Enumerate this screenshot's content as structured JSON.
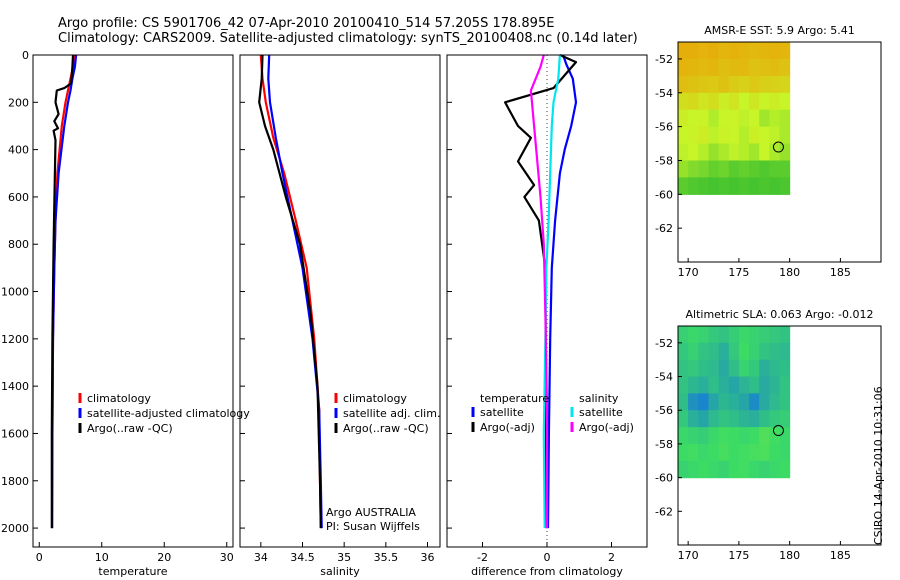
{
  "header": {
    "line1": "Argo profile: CS 5901706_42 07-Apr-2010 20100410_514 57.205S 178.895E",
    "line2": "Climatology: CARS2009. Satellite-adjusted climatology: synTS_20100408.nc (0.14d later)"
  },
  "stamp": "CSIRO 14-Apr-2010 10:31:06",
  "colors": {
    "climatology": "#ff0000",
    "satellite": "#0000ff",
    "argo": "#000000",
    "satellite_diff": "#00e5ee",
    "argo_diff": "#ff00ff"
  },
  "chart_data": [
    {
      "type": "line",
      "xlabel": "temperature",
      "ylabel": "",
      "xlim": [
        -1,
        31
      ],
      "ylim": [
        2080,
        0
      ],
      "xticks": [
        0,
        10,
        20,
        30
      ],
      "yticks": [
        0,
        200,
        400,
        600,
        800,
        1000,
        1200,
        1400,
        1600,
        1800,
        2000
      ],
      "legend": [
        "climatology",
        "satellite-adjusted climatology",
        "Argo(..raw -QC)"
      ],
      "legend_placement": "lower-center",
      "series": [
        {
          "name": "climatology",
          "color": "#ff0000",
          "x": [
            5.6,
            5.4,
            5.0,
            4.6,
            4.2,
            3.6,
            2.9,
            2.6,
            2.4,
            2.2,
            2.1,
            2.05
          ],
          "y": [
            0,
            50,
            100,
            150,
            200,
            300,
            500,
            700,
            900,
            1200,
            1600,
            2000
          ]
        },
        {
          "name": "satellite-adjusted climatology",
          "color": "#0000ff",
          "x": [
            5.9,
            5.7,
            5.3,
            5.0,
            4.6,
            4.0,
            3.1,
            2.6,
            2.4,
            2.2,
            2.1,
            2.05
          ],
          "y": [
            0,
            50,
            100,
            150,
            200,
            300,
            500,
            700,
            900,
            1200,
            1600,
            2000
          ]
        },
        {
          "name": "Argo(..raw -QC)",
          "color": "#000000",
          "x": [
            5.4,
            5.3,
            5.1,
            4.0,
            2.8,
            2.6,
            3.1,
            2.4,
            3.0,
            2.3,
            2.6,
            2.5,
            2.3,
            2.1,
            2.0,
            2.0
          ],
          "y": [
            0,
            50,
            120,
            140,
            150,
            200,
            250,
            280,
            310,
            320,
            360,
            500,
            800,
            1200,
            1600,
            2000
          ]
        }
      ]
    },
    {
      "type": "line",
      "xlabel": "salinity",
      "xlim": [
        33.75,
        36.15
      ],
      "ylim": [
        2080,
        0
      ],
      "xticks": [
        34,
        34.5,
        35,
        35.5,
        36
      ],
      "legend": [
        "climatology",
        "satellite adj. clim.",
        "Argo(..raw -QC)"
      ],
      "legend_placement": "lower-center",
      "annotation": [
        "Argo AUSTRALIA",
        "PI: Susan Wijffels"
      ],
      "series": [
        {
          "name": "climatology",
          "color": "#ff0000",
          "x": [
            34.0,
            34.02,
            34.06,
            34.15,
            34.28,
            34.42,
            34.55,
            34.64,
            34.7,
            34.71,
            34.72
          ],
          "y": [
            0,
            100,
            200,
            350,
            500,
            700,
            900,
            1200,
            1500,
            1800,
            2000
          ]
        },
        {
          "name": "satellite adj. clim.",
          "color": "#0000ff",
          "x": [
            34.1,
            34.09,
            34.11,
            34.18,
            34.26,
            34.38,
            34.5,
            34.62,
            34.7,
            34.72,
            34.73
          ],
          "y": [
            0,
            100,
            200,
            350,
            500,
            700,
            900,
            1200,
            1500,
            1800,
            2000
          ]
        },
        {
          "name": "Argo(..raw -QC)",
          "color": "#000000",
          "x": [
            34.02,
            34.01,
            33.98,
            34.05,
            34.15,
            34.3,
            34.47,
            34.6,
            34.68,
            34.71,
            34.72
          ],
          "y": [
            0,
            100,
            200,
            300,
            400,
            600,
            800,
            1100,
            1400,
            1800,
            2000
          ]
        }
      ]
    },
    {
      "type": "line",
      "xlabel": "difference from climatology",
      "xlim": [
        -3.1,
        3.1
      ],
      "ylim": [
        2080,
        0
      ],
      "xticks": [
        -2,
        0,
        2
      ],
      "legend_groups": [
        {
          "title": "temperature",
          "items": [
            "satellite",
            "Argo(-adj)"
          ]
        },
        {
          "title": "salinity",
          "items": [
            "satellite",
            "Argo(-adj)"
          ]
        }
      ],
      "legend_placement": "lower-center",
      "series": [
        {
          "name": "temperature satellite",
          "color": "#0000ff",
          "x": [
            0.5,
            0.6,
            0.8,
            0.9,
            0.75,
            0.55,
            0.4,
            0.25,
            0.15,
            0.1,
            0.06,
            0.03
          ],
          "y": [
            0,
            40,
            100,
            200,
            300,
            400,
            500,
            700,
            900,
            1200,
            1600,
            2000
          ]
        },
        {
          "name": "temperature Argo(-adj)",
          "color": "#000000",
          "x": [
            0.4,
            0.9,
            0.2,
            -1.3,
            -1.1,
            -0.9,
            -0.5,
            -0.9,
            -0.4,
            -0.7,
            -0.25,
            -0.05,
            -0.02
          ],
          "y": [
            0,
            30,
            140,
            200,
            250,
            300,
            350,
            450,
            550,
            600,
            700,
            900,
            2000
          ]
        },
        {
          "name": "salinity satellite",
          "color": "#00e5ee",
          "x": [
            0.4,
            0.35,
            0.2,
            0.15,
            0.1,
            0.05,
            -0.02,
            -0.05,
            -0.1,
            -0.07
          ],
          "y": [
            0,
            100,
            200,
            300,
            500,
            700,
            900,
            1200,
            1600,
            2000
          ]
        },
        {
          "name": "salinity Argo(-adj)",
          "color": "#ff00ff",
          "x": [
            -0.1,
            -0.2,
            -0.5,
            -0.4,
            -0.3,
            -0.2,
            -0.1,
            -0.05,
            0.0,
            0.0
          ],
          "y": [
            0,
            50,
            150,
            300,
            450,
            600,
            800,
            1100,
            1500,
            2000
          ]
        }
      ]
    },
    {
      "type": "heatmap",
      "title": "AMSR-E SST: 5.9 Argo: 5.41",
      "xlim": [
        169,
        189
      ],
      "ylim": [
        -64,
        -51
      ],
      "xticks": [
        170,
        175,
        180,
        185
      ],
      "yticks": [
        -52,
        -54,
        -56,
        -58,
        -60,
        -62
      ],
      "data_extent": {
        "lon": [
          169,
          180
        ],
        "lat": [
          -60,
          -51
        ]
      },
      "marker": {
        "lon": 178.895,
        "lat": -57.205
      },
      "values": [
        [
          0.85,
          0.85,
          0.82,
          0.84,
          0.8,
          0.83,
          0.8,
          0.78,
          0.8,
          0.82,
          0.8
        ],
        [
          0.82,
          0.8,
          0.78,
          0.8,
          0.75,
          0.77,
          0.78,
          0.72,
          0.74,
          0.76,
          0.72
        ],
        [
          0.75,
          0.72,
          0.7,
          0.68,
          0.72,
          0.66,
          0.62,
          0.68,
          0.64,
          0.62,
          0.6
        ],
        [
          0.55,
          0.58,
          0.5,
          0.55,
          0.45,
          0.5,
          0.4,
          0.48,
          0.42,
          0.45,
          0.4
        ],
        [
          0.45,
          0.4,
          0.42,
          0.35,
          0.4,
          0.42,
          0.38,
          0.4,
          0.32,
          0.36,
          0.34
        ],
        [
          0.4,
          0.42,
          0.46,
          0.38,
          0.42,
          0.4,
          0.36,
          0.44,
          0.4,
          0.38,
          0.34
        ],
        [
          0.38,
          0.4,
          0.36,
          0.3,
          0.34,
          0.38,
          0.36,
          0.32,
          0.4,
          0.34,
          0.3
        ],
        [
          0.3,
          0.26,
          0.24,
          0.2,
          0.22,
          0.18,
          0.2,
          0.18,
          0.16,
          0.18,
          0.18
        ],
        [
          0.18,
          0.16,
          0.15,
          0.14,
          0.15,
          0.14,
          0.15,
          0.14,
          0.15,
          0.14,
          0.15
        ]
      ]
    },
    {
      "type": "heatmap",
      "title": "Altimetric SLA: 0.063 Argo: -0.012",
      "xlim": [
        169,
        189
      ],
      "ylim": [
        -64,
        -51
      ],
      "xticks": [
        170,
        175,
        180,
        185
      ],
      "yticks": [
        -52,
        -54,
        -56,
        -58,
        -60,
        -62
      ],
      "data_extent": {
        "lon": [
          169,
          180
        ],
        "lat": [
          -60,
          -51
        ]
      },
      "marker": {
        "lon": 178.895,
        "lat": -57.205
      },
      "values": [
        [
          0.35,
          0.38,
          0.36,
          0.32,
          0.3,
          0.34,
          0.38,
          0.36,
          0.34,
          0.32,
          0.3
        ],
        [
          0.32,
          0.35,
          0.3,
          0.28,
          0.22,
          0.32,
          0.4,
          0.35,
          0.3,
          0.28,
          0.26
        ],
        [
          0.3,
          0.32,
          0.28,
          0.26,
          0.2,
          0.28,
          0.36,
          0.32,
          0.22,
          0.26,
          0.28
        ],
        [
          0.3,
          0.25,
          0.22,
          0.28,
          0.22,
          0.18,
          0.24,
          0.28,
          0.2,
          0.24,
          0.3
        ],
        [
          0.28,
          0.1,
          0.05,
          0.18,
          0.25,
          0.22,
          0.18,
          0.08,
          0.2,
          0.26,
          0.3
        ],
        [
          0.32,
          0.22,
          0.18,
          0.26,
          0.3,
          0.28,
          0.24,
          0.22,
          0.28,
          0.32,
          0.34
        ],
        [
          0.38,
          0.36,
          0.34,
          0.38,
          0.42,
          0.4,
          0.38,
          0.4,
          0.48,
          0.42,
          0.38
        ],
        [
          0.4,
          0.42,
          0.38,
          0.4,
          0.44,
          0.4,
          0.42,
          0.44,
          0.46,
          0.4,
          0.38
        ],
        [
          0.36,
          0.38,
          0.4,
          0.38,
          0.36,
          0.4,
          0.42,
          0.38,
          0.36,
          0.38,
          0.4
        ]
      ]
    }
  ]
}
